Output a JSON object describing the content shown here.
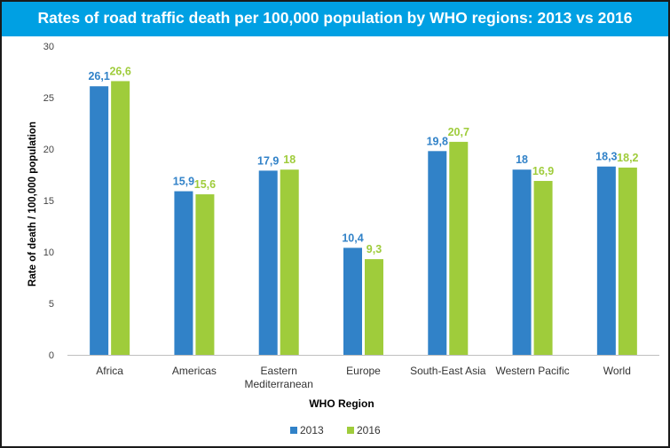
{
  "chart_data": {
    "type": "bar",
    "title": "Rates of road traffic death per 100,000 population by WHO regions: 2013 vs 2016",
    "xlabel": "WHO Region",
    "ylabel": "Rate of death / 100,000 population",
    "ylim": [
      0,
      30
    ],
    "yticks": [
      0,
      5,
      10,
      15,
      20,
      25,
      30
    ],
    "ytick_labels": [
      "0",
      "5",
      "10",
      "15",
      "20",
      "25",
      "30"
    ],
    "categories": [
      [
        "Africa"
      ],
      [
        "Americas"
      ],
      [
        "Eastern",
        "Mediterranean"
      ],
      [
        "Europe"
      ],
      [
        "South-East Asia"
      ],
      [
        "Western Pacific"
      ],
      [
        "World"
      ]
    ],
    "series": [
      {
        "name": "2013",
        "color": "#3182c8",
        "values": [
          26.1,
          15.9,
          17.9,
          10.4,
          19.8,
          18.0,
          18.3
        ],
        "labels": [
          "26,1",
          "15,9",
          "17,9",
          "10,4",
          "19,8",
          "18",
          "18,3"
        ]
      },
      {
        "name": "2016",
        "color": "#9fcc3b",
        "values": [
          26.6,
          15.6,
          18.0,
          9.3,
          20.7,
          16.9,
          18.2
        ],
        "labels": [
          "26,6",
          "15,6",
          "18",
          "9,3",
          "20,7",
          "16,9",
          "18,2"
        ]
      }
    ],
    "legend_position": "bottom",
    "grid": false
  }
}
